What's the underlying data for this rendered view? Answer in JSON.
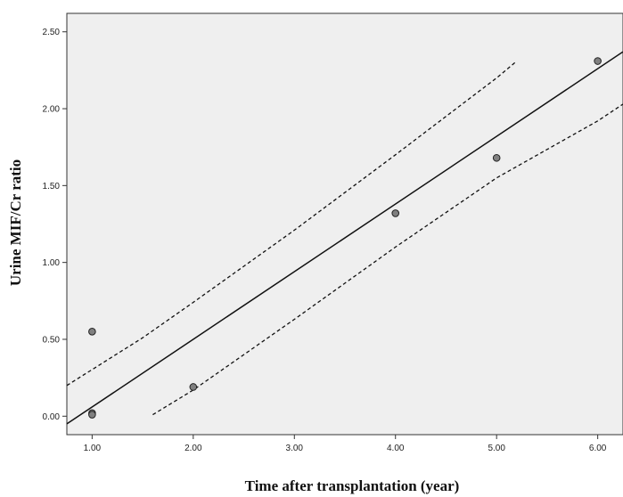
{
  "chart_data": {
    "type": "scatter",
    "xlabel": "Time after transplantation (year)",
    "ylabel": "Urine MIF/Cr ratio",
    "xlim": [
      0.75,
      6.25
    ],
    "ylim": [
      -0.12,
      2.62
    ],
    "x_ticks": [
      "1.00",
      "2.00",
      "3.00",
      "4.00",
      "5.00",
      "6.00"
    ],
    "y_ticks": [
      "0.00",
      "0.50",
      "1.00",
      "1.50",
      "2.00",
      "2.50"
    ],
    "grid": false,
    "background": "#efefef",
    "point_color": "#808080",
    "points": [
      {
        "x": 1.0,
        "y": 0.55
      },
      {
        "x": 1.0,
        "y": 0.02
      },
      {
        "x": 1.0,
        "y": 0.01
      },
      {
        "x": 2.0,
        "y": 0.19
      },
      {
        "x": 4.0,
        "y": 1.32
      },
      {
        "x": 5.0,
        "y": 1.68
      },
      {
        "x": 6.0,
        "y": 2.31
      }
    ],
    "fit_line": {
      "style": "solid",
      "x": [
        0.75,
        6.25
      ],
      "y": [
        -0.05,
        2.37
      ]
    },
    "confidence_bands": [
      {
        "style": "dashed",
        "name": "upper",
        "x": [
          0.75,
          1.5,
          2.0,
          3.0,
          4.0,
          5.0,
          5.2
        ],
        "y": [
          0.2,
          0.51,
          0.74,
          1.21,
          1.7,
          2.2,
          2.31
        ]
      },
      {
        "style": "dashed",
        "name": "lower",
        "x": [
          1.6,
          2.0,
          3.0,
          4.0,
          5.0,
          6.0,
          6.25
        ],
        "y": [
          0.01,
          0.17,
          0.63,
          1.1,
          1.55,
          1.92,
          2.03
        ]
      }
    ]
  }
}
